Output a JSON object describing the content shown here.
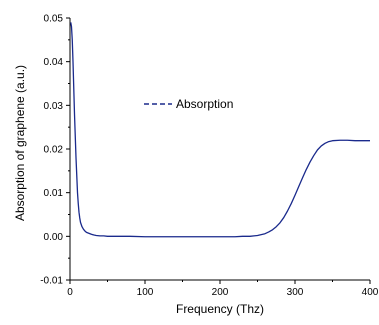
{
  "chart_data": {
    "type": "line",
    "title": "",
    "xlabel": "Frequency (Thz)",
    "ylabel": "Absorption of graphene (a.u.)",
    "xlim": [
      0,
      400
    ],
    "ylim": [
      -0.01,
      0.05
    ],
    "xticks": [
      0,
      100,
      200,
      300,
      400
    ],
    "yticks": [
      -0.01,
      0.0,
      0.01,
      0.02,
      0.03,
      0.04,
      0.05
    ],
    "ytick_labels": [
      "-0.01",
      "0.00",
      "0.01",
      "0.02",
      "0.03",
      "0.04",
      "0.05"
    ],
    "xtick_labels": [
      "0",
      "100",
      "200",
      "300",
      "400"
    ],
    "grid": false,
    "legend": {
      "position": "upper-middle",
      "entries": [
        "Absorption"
      ]
    },
    "series": [
      {
        "name": "Absorption",
        "color": "#1a2a8c",
        "style": "solid",
        "x": [
          1,
          2,
          3,
          4,
          5,
          6,
          7,
          8,
          9,
          10,
          11,
          12,
          13,
          14,
          16,
          18,
          20,
          22,
          25,
          28,
          30,
          32,
          35,
          40,
          45,
          50,
          60,
          70,
          80,
          100,
          120,
          140,
          160,
          180,
          200,
          220,
          230,
          240,
          250,
          260,
          265,
          270,
          275,
          280,
          285,
          290,
          295,
          300,
          305,
          310,
          315,
          320,
          325,
          330,
          335,
          340,
          345,
          350,
          360,
          370,
          380,
          390,
          400
        ],
        "y": [
          0.049,
          0.048,
          0.045,
          0.04,
          0.034,
          0.028,
          0.023,
          0.018,
          0.014,
          0.01,
          0.0075,
          0.0055,
          0.0042,
          0.0032,
          0.0022,
          0.0016,
          0.0012,
          0.0009,
          0.0007,
          0.0005,
          0.0004,
          0.0003,
          0.0002,
          0.0001,
          0.0001,
          0.0,
          0.0,
          0.0,
          0.0,
          -0.0001,
          -0.0001,
          -0.0001,
          -0.0001,
          -0.0001,
          -0.0001,
          -0.0001,
          0.0,
          0.0,
          0.0002,
          0.0006,
          0.001,
          0.0015,
          0.0022,
          0.0031,
          0.0043,
          0.0058,
          0.0075,
          0.0094,
          0.0114,
          0.0134,
          0.0153,
          0.017,
          0.0185,
          0.0198,
          0.0207,
          0.0213,
          0.0217,
          0.0219,
          0.022,
          0.022,
          0.0219,
          0.0219,
          0.0219
        ]
      }
    ]
  }
}
